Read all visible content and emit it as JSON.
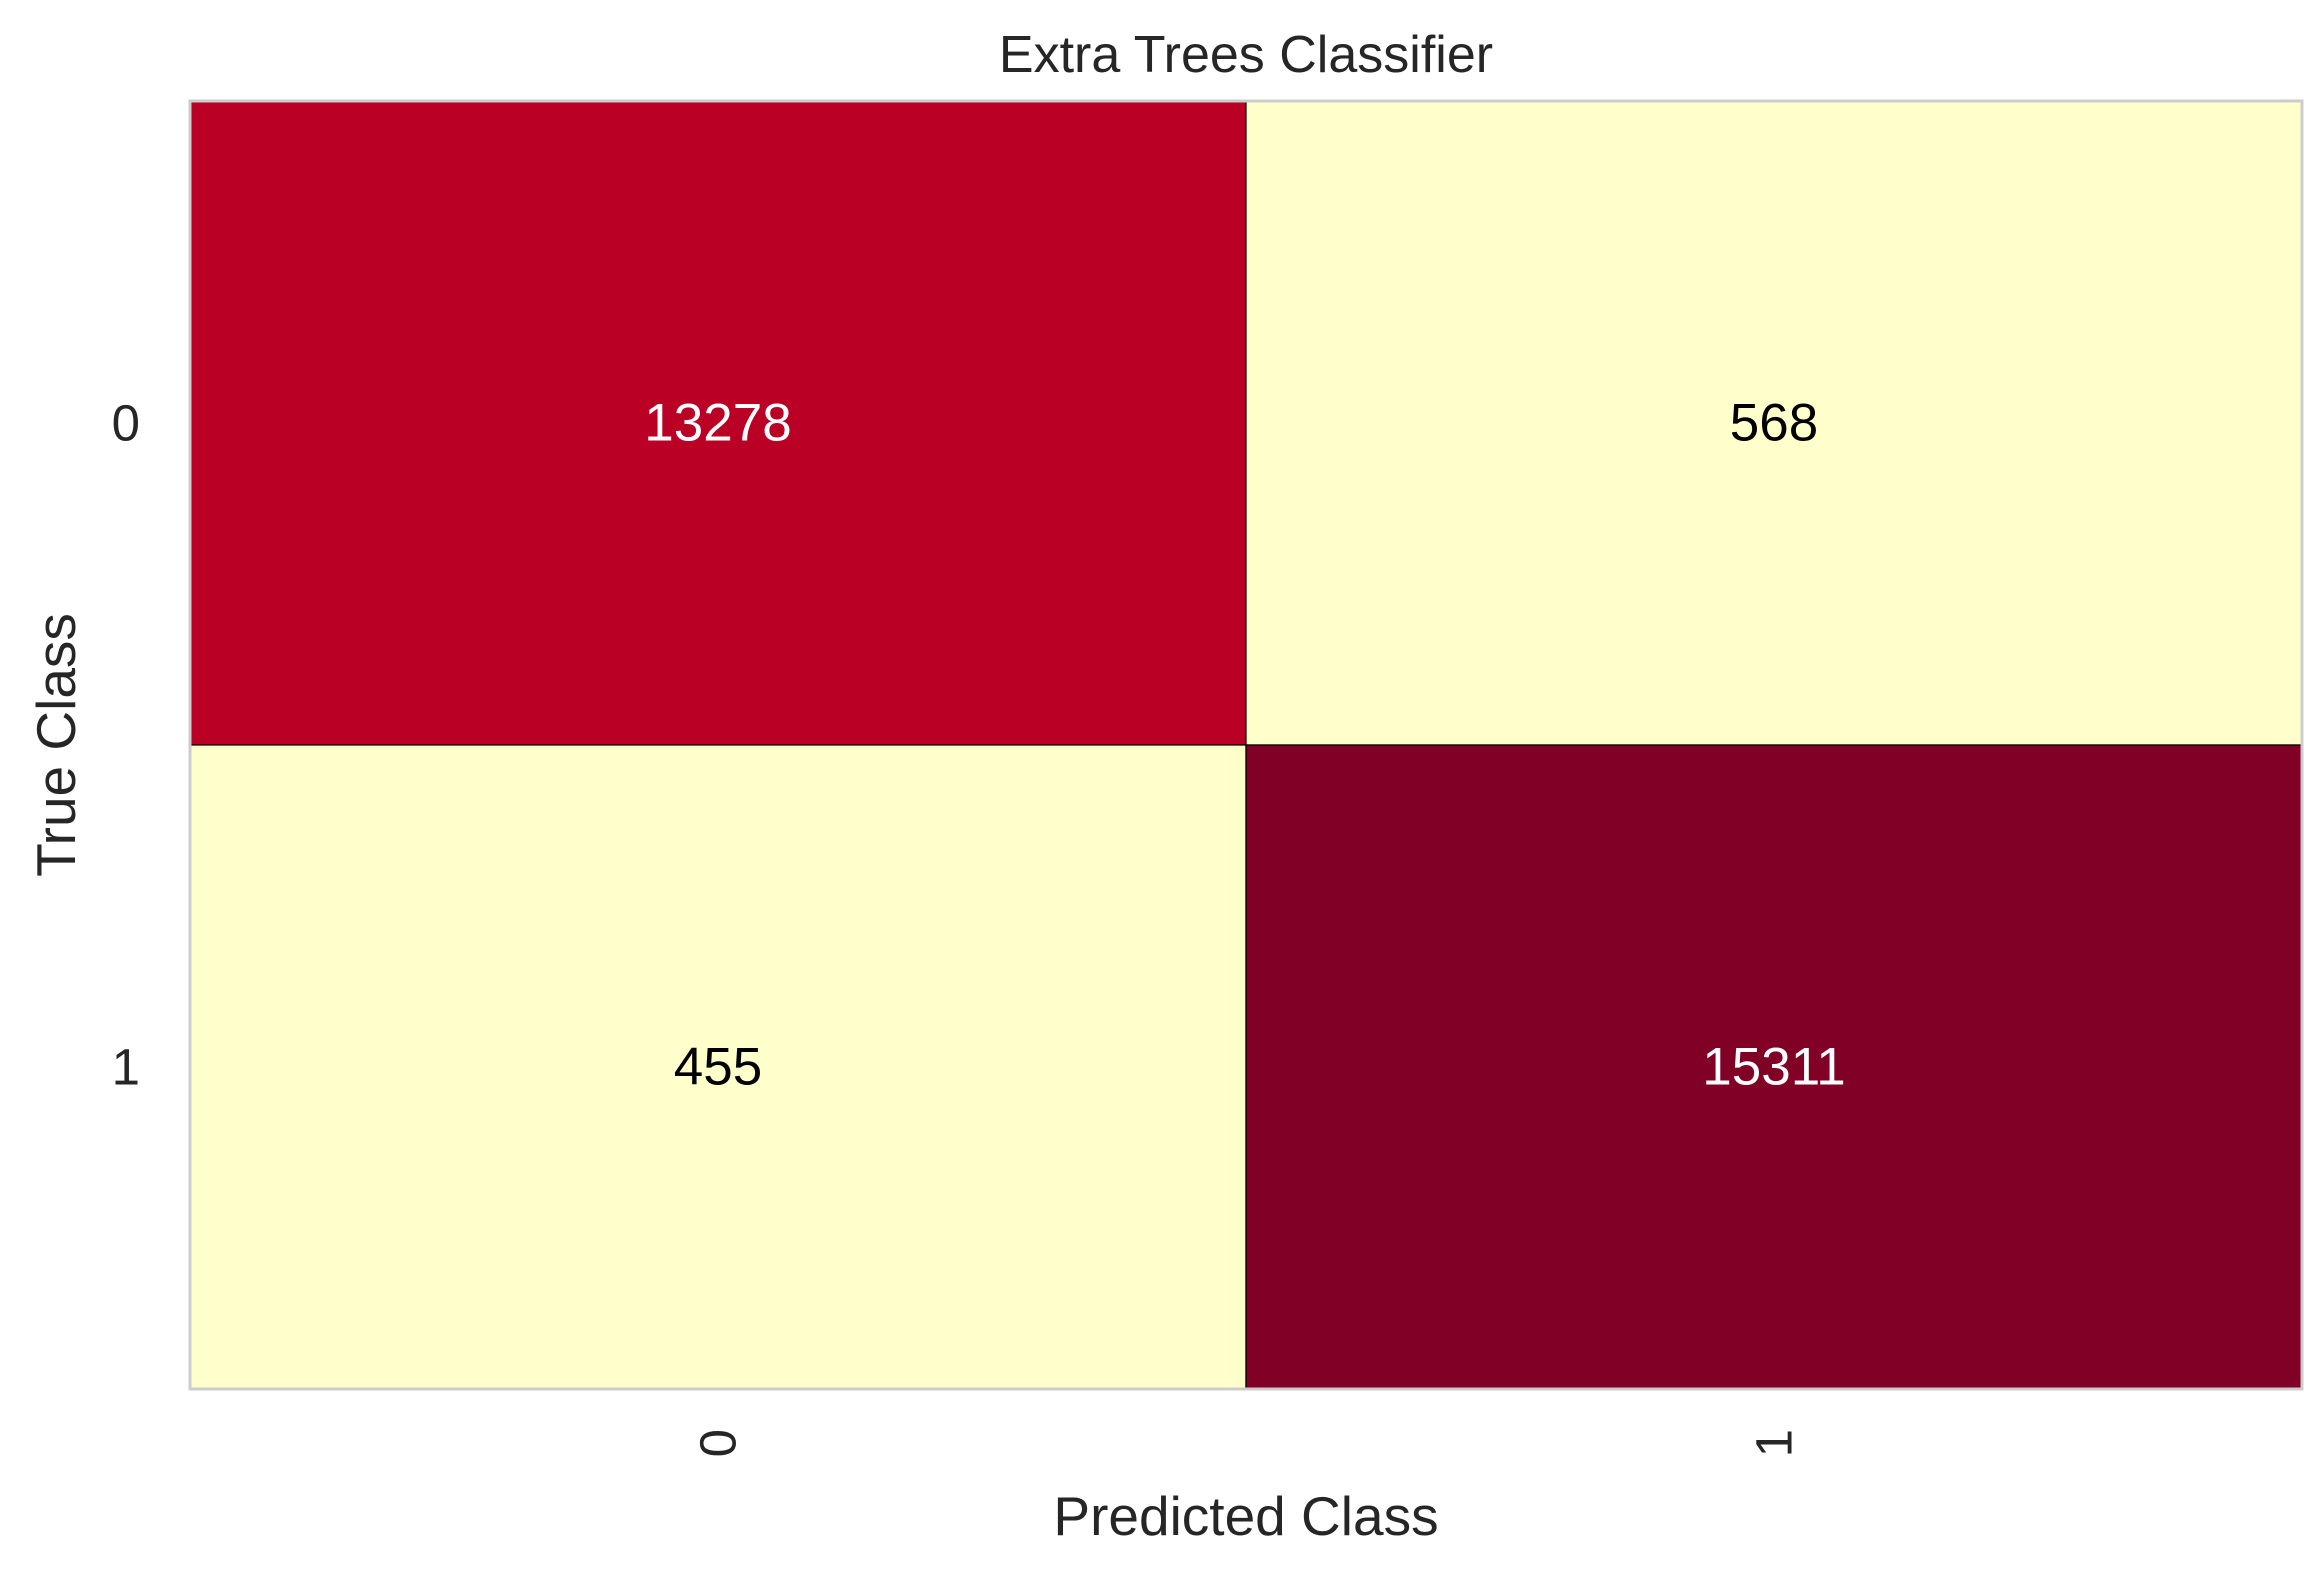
{
  "chart_data": {
    "type": "heatmap",
    "title": "Extra Trees Classifier",
    "xlabel": "Predicted Class",
    "ylabel": "True Class",
    "x_categories": [
      "0",
      "1"
    ],
    "y_categories": [
      "0",
      "1"
    ],
    "values": [
      [
        13278,
        568
      ],
      [
        455,
        15311
      ]
    ],
    "cell_colors": [
      [
        "#bb0026",
        "#ffffcc"
      ],
      [
        "#ffffcc",
        "#800026"
      ]
    ],
    "cell_text_colors": [
      [
        "#ffffff",
        "#000000"
      ],
      [
        "#000000",
        "#ffffff"
      ]
    ],
    "colormap": "YlOrRd",
    "grid": false,
    "legend": "none"
  }
}
